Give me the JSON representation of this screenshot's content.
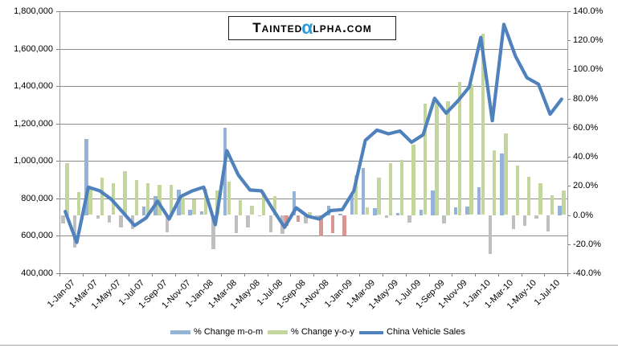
{
  "watermark": {
    "prefix": "Tainted",
    "alpha": "α",
    "suffix": "lpha.com"
  },
  "legend": [
    {
      "label": "% Change m-o-m",
      "color": "#95B3D7",
      "type": "bar"
    },
    {
      "label": "% Change y-o-y",
      "color": "#C3D69B",
      "type": "bar"
    },
    {
      "label": "China Vehicle Sales",
      "color": "#4F81BD",
      "type": "line"
    }
  ],
  "chart_data": {
    "type": "combo-bar-line",
    "title": "",
    "left_axis": {
      "min": 400000,
      "max": 1800000,
      "step": 200000,
      "labels": [
        "1,800,000",
        "1,600,000",
        "1,400,000",
        "1,200,000",
        "1,000,000",
        "800,000",
        "600,000",
        "400,000"
      ]
    },
    "right_axis": {
      "min": -40,
      "max": 140,
      "step": 20,
      "labels": [
        "140.0%",
        "120.0%",
        "100.0%",
        "80.0%",
        "60.0%",
        "40.0%",
        "20.0%",
        "0.0%",
        "-20.0%",
        "-40.0%"
      ]
    },
    "x_axis": {
      "labels": [
        "1-Jan-07",
        "1-Mar-07",
        "1-May-07",
        "1-Jul-07",
        "1-Sep-07",
        "1-Nov-07",
        "1-Jan-08",
        "1-Mar-08",
        "1-May-08",
        "1-Jul-08",
        "1-Sep-08",
        "1-Nov-08",
        "1-Jan-09",
        "1-Mar-09",
        "1-May-09",
        "1-Jul-09",
        "1-Sep-09",
        "1-Nov-09",
        "1-Jan-10",
        "1-Mar-10",
        "1-May-10",
        "1-Jul-10"
      ]
    },
    "months": [
      "Jan-07",
      "Feb-07",
      "Mar-07",
      "Apr-07",
      "May-07",
      "Jun-07",
      "Jul-07",
      "Aug-07",
      "Sep-07",
      "Oct-07",
      "Nov-07",
      "Dec-07",
      "Jan-08",
      "Feb-08",
      "Mar-08",
      "Apr-08",
      "May-08",
      "Jun-08",
      "Jul-08",
      "Aug-08",
      "Sep-08",
      "Oct-08",
      "Nov-08",
      "Dec-08",
      "Jan-09",
      "Feb-09",
      "Mar-09",
      "Apr-09",
      "May-09",
      "Jun-09",
      "Jul-09",
      "Aug-09",
      "Sep-09",
      "Oct-09",
      "Nov-09",
      "Dec-09",
      "Jan-10",
      "Feb-10",
      "Mar-10",
      "Apr-10",
      "May-10",
      "Jun-10",
      "Jul-10",
      "Aug-10"
    ],
    "series": [
      {
        "name": "China Vehicle Sales",
        "axis": "left",
        "kind": "line",
        "color": "#4F81BD",
        "values": [
          730000,
          565000,
          860000,
          840000,
          795000,
          725000,
          655000,
          695000,
          785000,
          690000,
          810000,
          840000,
          860000,
          660000,
          1055000,
          925000,
          845000,
          840000,
          740000,
          645000,
          750000,
          705000,
          690000,
          735000,
          740000,
          840000,
          1110000,
          1165000,
          1145000,
          1160000,
          1100000,
          1140000,
          1335000,
          1255000,
          1320000,
          1395000,
          1660000,
          1215000,
          1730000,
          1560000,
          1445000,
          1410000,
          1250000,
          1330000
        ]
      },
      {
        "name": "% Change m-o-m",
        "axis": "right",
        "kind": "bar",
        "color_pos": "#95B3D7",
        "color_neg": "#BFBFBF",
        "values": [
          -6.0,
          -22.6,
          52.2,
          -2.3,
          -5.4,
          -8.8,
          -9.7,
          6.1,
          12.9,
          -12.1,
          17.4,
          3.7,
          2.4,
          -23.3,
          59.8,
          -12.3,
          -8.6,
          -0.6,
          -11.9,
          -12.8,
          16.3,
          -6.0,
          -2.1,
          6.5,
          0.7,
          13.5,
          32.1,
          5.0,
          -1.7,
          1.3,
          -5.2,
          3.6,
          17.1,
          -6.0,
          5.2,
          5.7,
          19.0,
          -26.8,
          42.4,
          -9.8,
          -7.4,
          -2.4,
          -11.3,
          6.4
        ]
      },
      {
        "name": "% Change y-o-y",
        "axis": "right",
        "kind": "bar",
        "color_pos": "#C3D69B",
        "color_neg": "#D99694",
        "values": [
          35.5,
          16.0,
          19.0,
          26.0,
          22.0,
          30.0,
          24.0,
          22.0,
          21.0,
          21.0,
          12.0,
          11.0,
          17.8,
          16.8,
          22.7,
          10.1,
          6.3,
          15.9,
          13.0,
          -7.2,
          -4.5,
          2.2,
          -14.8,
          -12.5,
          -14.0,
          27.3,
          5.2,
          25.9,
          35.5,
          38.1,
          48.6,
          76.7,
          78.0,
          78.0,
          91.3,
          89.8,
          124.3,
          44.6,
          55.9,
          33.9,
          26.2,
          21.6,
          13.6,
          16.7
        ]
      }
    ],
    "grid": "horizontal",
    "legend_position": "bottom"
  }
}
